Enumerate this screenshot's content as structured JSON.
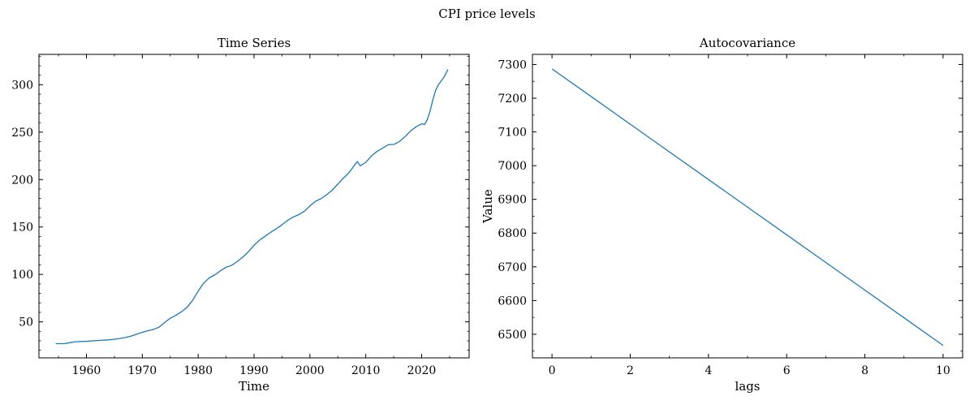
{
  "figure": {
    "suptitle": "CPI price levels"
  },
  "colors": {
    "line": "#1f77b4",
    "axes": "#000000",
    "background": "#ffffff"
  },
  "chart_data": [
    {
      "type": "line",
      "title": "Time Series",
      "xlabel": "Time",
      "ylabel": "",
      "xlim": [
        1951.5,
        2028.5
      ],
      "ylim": [
        12,
        332
      ],
      "xticks": [
        1960,
        1970,
        1980,
        1990,
        2000,
        2010,
        2020
      ],
      "yticks": [
        50,
        100,
        150,
        200,
        250,
        300
      ],
      "grid": false,
      "series": [
        {
          "x": [
            1954.5,
            1956,
            1957,
            1958,
            1960,
            1962,
            1964,
            1965,
            1966,
            1967,
            1968,
            1969,
            1970,
            1971,
            1972,
            1973,
            1974,
            1975,
            1976,
            1977,
            1978,
            1979,
            1980,
            1981,
            1982,
            1983,
            1984,
            1985,
            1986,
            1987,
            1988,
            1989,
            1990,
            1991,
            1992,
            1993,
            1994,
            1995,
            1996,
            1997,
            1998,
            1999,
            2000,
            2001,
            2002,
            2003,
            2004,
            2005,
            2006,
            2007,
            2008,
            2008.5,
            2009,
            2010,
            2011,
            2012,
            2013,
            2014,
            2015,
            2016,
            2017,
            2018,
            2019,
            2020,
            2020.5,
            2021,
            2021.5,
            2022,
            2022.5,
            2023,
            2024,
            2024.7
          ],
          "y": [
            27,
            27,
            28,
            29,
            29.5,
            30.3,
            31,
            31.6,
            32.5,
            33.5,
            35,
            37,
            39,
            40.7,
            42,
            44.4,
            49.3,
            53.8,
            56.9,
            60.6,
            65.2,
            72.6,
            82.4,
            90.9,
            96.5,
            99.6,
            103.9,
            107.6,
            109.6,
            113.6,
            118.3,
            124,
            130.7,
            136.2,
            140.3,
            144.5,
            148.2,
            152.4,
            156.9,
            160.5,
            163,
            166.6,
            172.2,
            177.1,
            179.9,
            184,
            188.9,
            195.3,
            201.6,
            207.3,
            215.3,
            219,
            214.5,
            218.1,
            224.9,
            229.6,
            233,
            236.7,
            237,
            240,
            245.1,
            251.1,
            255.7,
            258.8,
            258,
            263,
            272,
            284,
            294,
            300,
            308,
            316
          ]
        }
      ]
    },
    {
      "type": "line",
      "title": "Autocovariance",
      "xlabel": "lags",
      "ylabel": "Value",
      "xlim": [
        -0.5,
        10.5
      ],
      "ylim": [
        6430,
        7330
      ],
      "xticks": [
        0,
        2,
        4,
        6,
        8,
        10
      ],
      "yticks": [
        6500,
        6600,
        6700,
        6800,
        6900,
        7000,
        7100,
        7200,
        7300
      ],
      "grid": false,
      "series": [
        {
          "x": [
            0,
            1,
            2,
            3,
            4,
            5,
            6,
            7,
            8,
            9,
            10
          ],
          "y": [
            7287,
            7205,
            7123,
            7041,
            6959,
            6877,
            6795,
            6713,
            6631,
            6549,
            6467
          ]
        }
      ]
    }
  ]
}
